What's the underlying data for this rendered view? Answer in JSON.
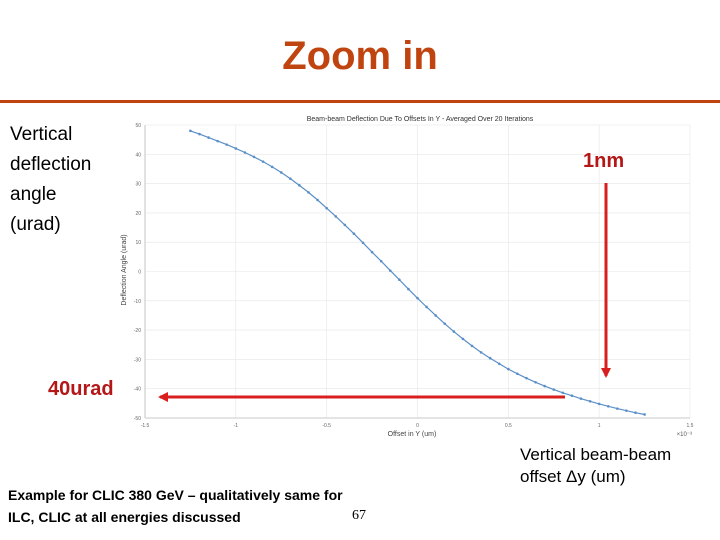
{
  "slide": {
    "title": "Zoom in",
    "accent_color": "#c0440f",
    "y_axis_label_lines": [
      "Vertical",
      "deflection",
      "angle",
      "(urad)"
    ],
    "x_axis_label_lines": [
      "Vertical beam-beam",
      "offset Δy (um)"
    ],
    "callout_1nm": "1nm",
    "callout_40urad": "40urad",
    "arrow_color": "#d81e1e",
    "footnote_lines": [
      "Example for CLIC 380 GeV – qualitatively same for",
      "ILC, CLIC at all energies discussed"
    ],
    "page_number": "67"
  },
  "chart_data": {
    "type": "line",
    "title": "Beam-beam Deflection Due To Offsets In Y - Averaged Over 20 Iterations",
    "xlabel": "Offset in Y (um)",
    "ylabel": "Deflection Angle (urad)",
    "xlim": [
      -1.5,
      1.5
    ],
    "ylim": [
      -50,
      50
    ],
    "xticks": [
      "-1.5",
      "-1",
      "-0.5",
      "0",
      "0.5",
      "1",
      "1.5"
    ],
    "x_exponent": "×10⁻³",
    "yticks": [
      "50",
      "40",
      "30",
      "20",
      "10",
      "0",
      "-10",
      "-20",
      "-30",
      "-40",
      "-50"
    ],
    "grid": true,
    "series_color": "#5b8fc7",
    "series": [
      {
        "x": [
          -1.25,
          -1.2,
          -1.15,
          -1.1,
          -1.05,
          -1.0,
          -0.95,
          -0.9,
          -0.85,
          -0.8,
          -0.75,
          -0.7,
          -0.65,
          -0.6,
          -0.55,
          -0.5,
          -0.45,
          -0.4,
          -0.35,
          -0.3,
          -0.25,
          -0.2,
          -0.15,
          -0.1,
          -0.05,
          0.0,
          0.05,
          0.1,
          0.15,
          0.2,
          0.25,
          0.3,
          0.35,
          0.4,
          0.45,
          0.5,
          0.55,
          0.6,
          0.65,
          0.7,
          0.75,
          0.8,
          0.85,
          0.9,
          0.95,
          1.0,
          1.05,
          1.1,
          1.15,
          1.2,
          1.25
        ],
        "y": [
          48.0,
          46.9,
          45.7,
          44.5,
          43.3,
          42.0,
          40.6,
          39.1,
          37.5,
          35.7,
          33.8,
          31.7,
          29.4,
          27.0,
          24.4,
          21.6,
          18.8,
          15.9,
          12.9,
          9.8,
          6.6,
          3.5,
          0.3,
          -2.8,
          -6.0,
          -9.1,
          -12.1,
          -15.0,
          -17.8,
          -20.5,
          -23.0,
          -25.4,
          -27.6,
          -29.6,
          -31.5,
          -33.3,
          -34.9,
          -36.4,
          -37.8,
          -39.1,
          -40.3,
          -41.4,
          -42.4,
          -43.4,
          -44.3,
          -45.2,
          -46.0,
          -46.8,
          -47.5,
          -48.2,
          -48.8
        ]
      }
    ]
  }
}
